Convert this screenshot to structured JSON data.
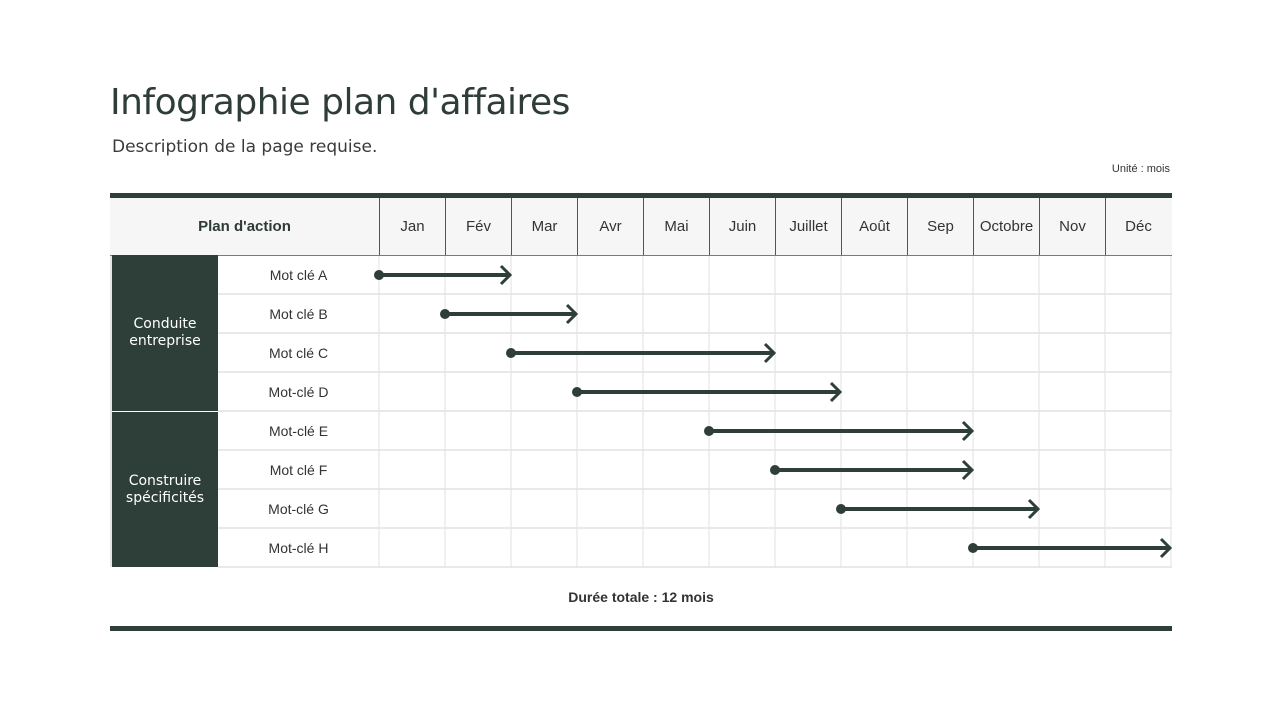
{
  "title": "Infographie plan d'affaires",
  "description": "Description de la page requise.",
  "unit": "Unité : mois",
  "header": {
    "plan": "Plan d'action",
    "months": [
      "Jan",
      "Fév",
      "Mar",
      "Avr",
      "Mai",
      "Juin",
      "Juillet",
      "Août",
      "Sep",
      "Octobre",
      "Nov",
      "Déc"
    ]
  },
  "groups": [
    {
      "label": "Conduite entreprise",
      "rows": [
        {
          "label": "Mot clé A",
          "start": "Jan",
          "end": "Fév"
        },
        {
          "label": "Mot clé B",
          "start": "Fév",
          "end": "Mar"
        },
        {
          "label": "Mot clé C",
          "start": "Mar",
          "end": "Juin"
        },
        {
          "label": "Mot-clé D",
          "start": "Avr",
          "end": "Juillet"
        }
      ]
    },
    {
      "label": "Construire spécificités",
      "rows": [
        {
          "label": "Mot-clé E",
          "start": "Juin",
          "end": "Sep"
        },
        {
          "label": "Mot clé F",
          "start": "Juillet",
          "end": "Sep"
        },
        {
          "label": "Mot-clé G",
          "start": "Août",
          "end": "Octobre"
        },
        {
          "label": "Mot-clé H",
          "start": "Octobre",
          "end": "Déc"
        }
      ]
    }
  ],
  "total": "Durée totale : 12 mois",
  "colors": {
    "accent": "#2e3e38",
    "grid": "#e2e2e2"
  }
}
